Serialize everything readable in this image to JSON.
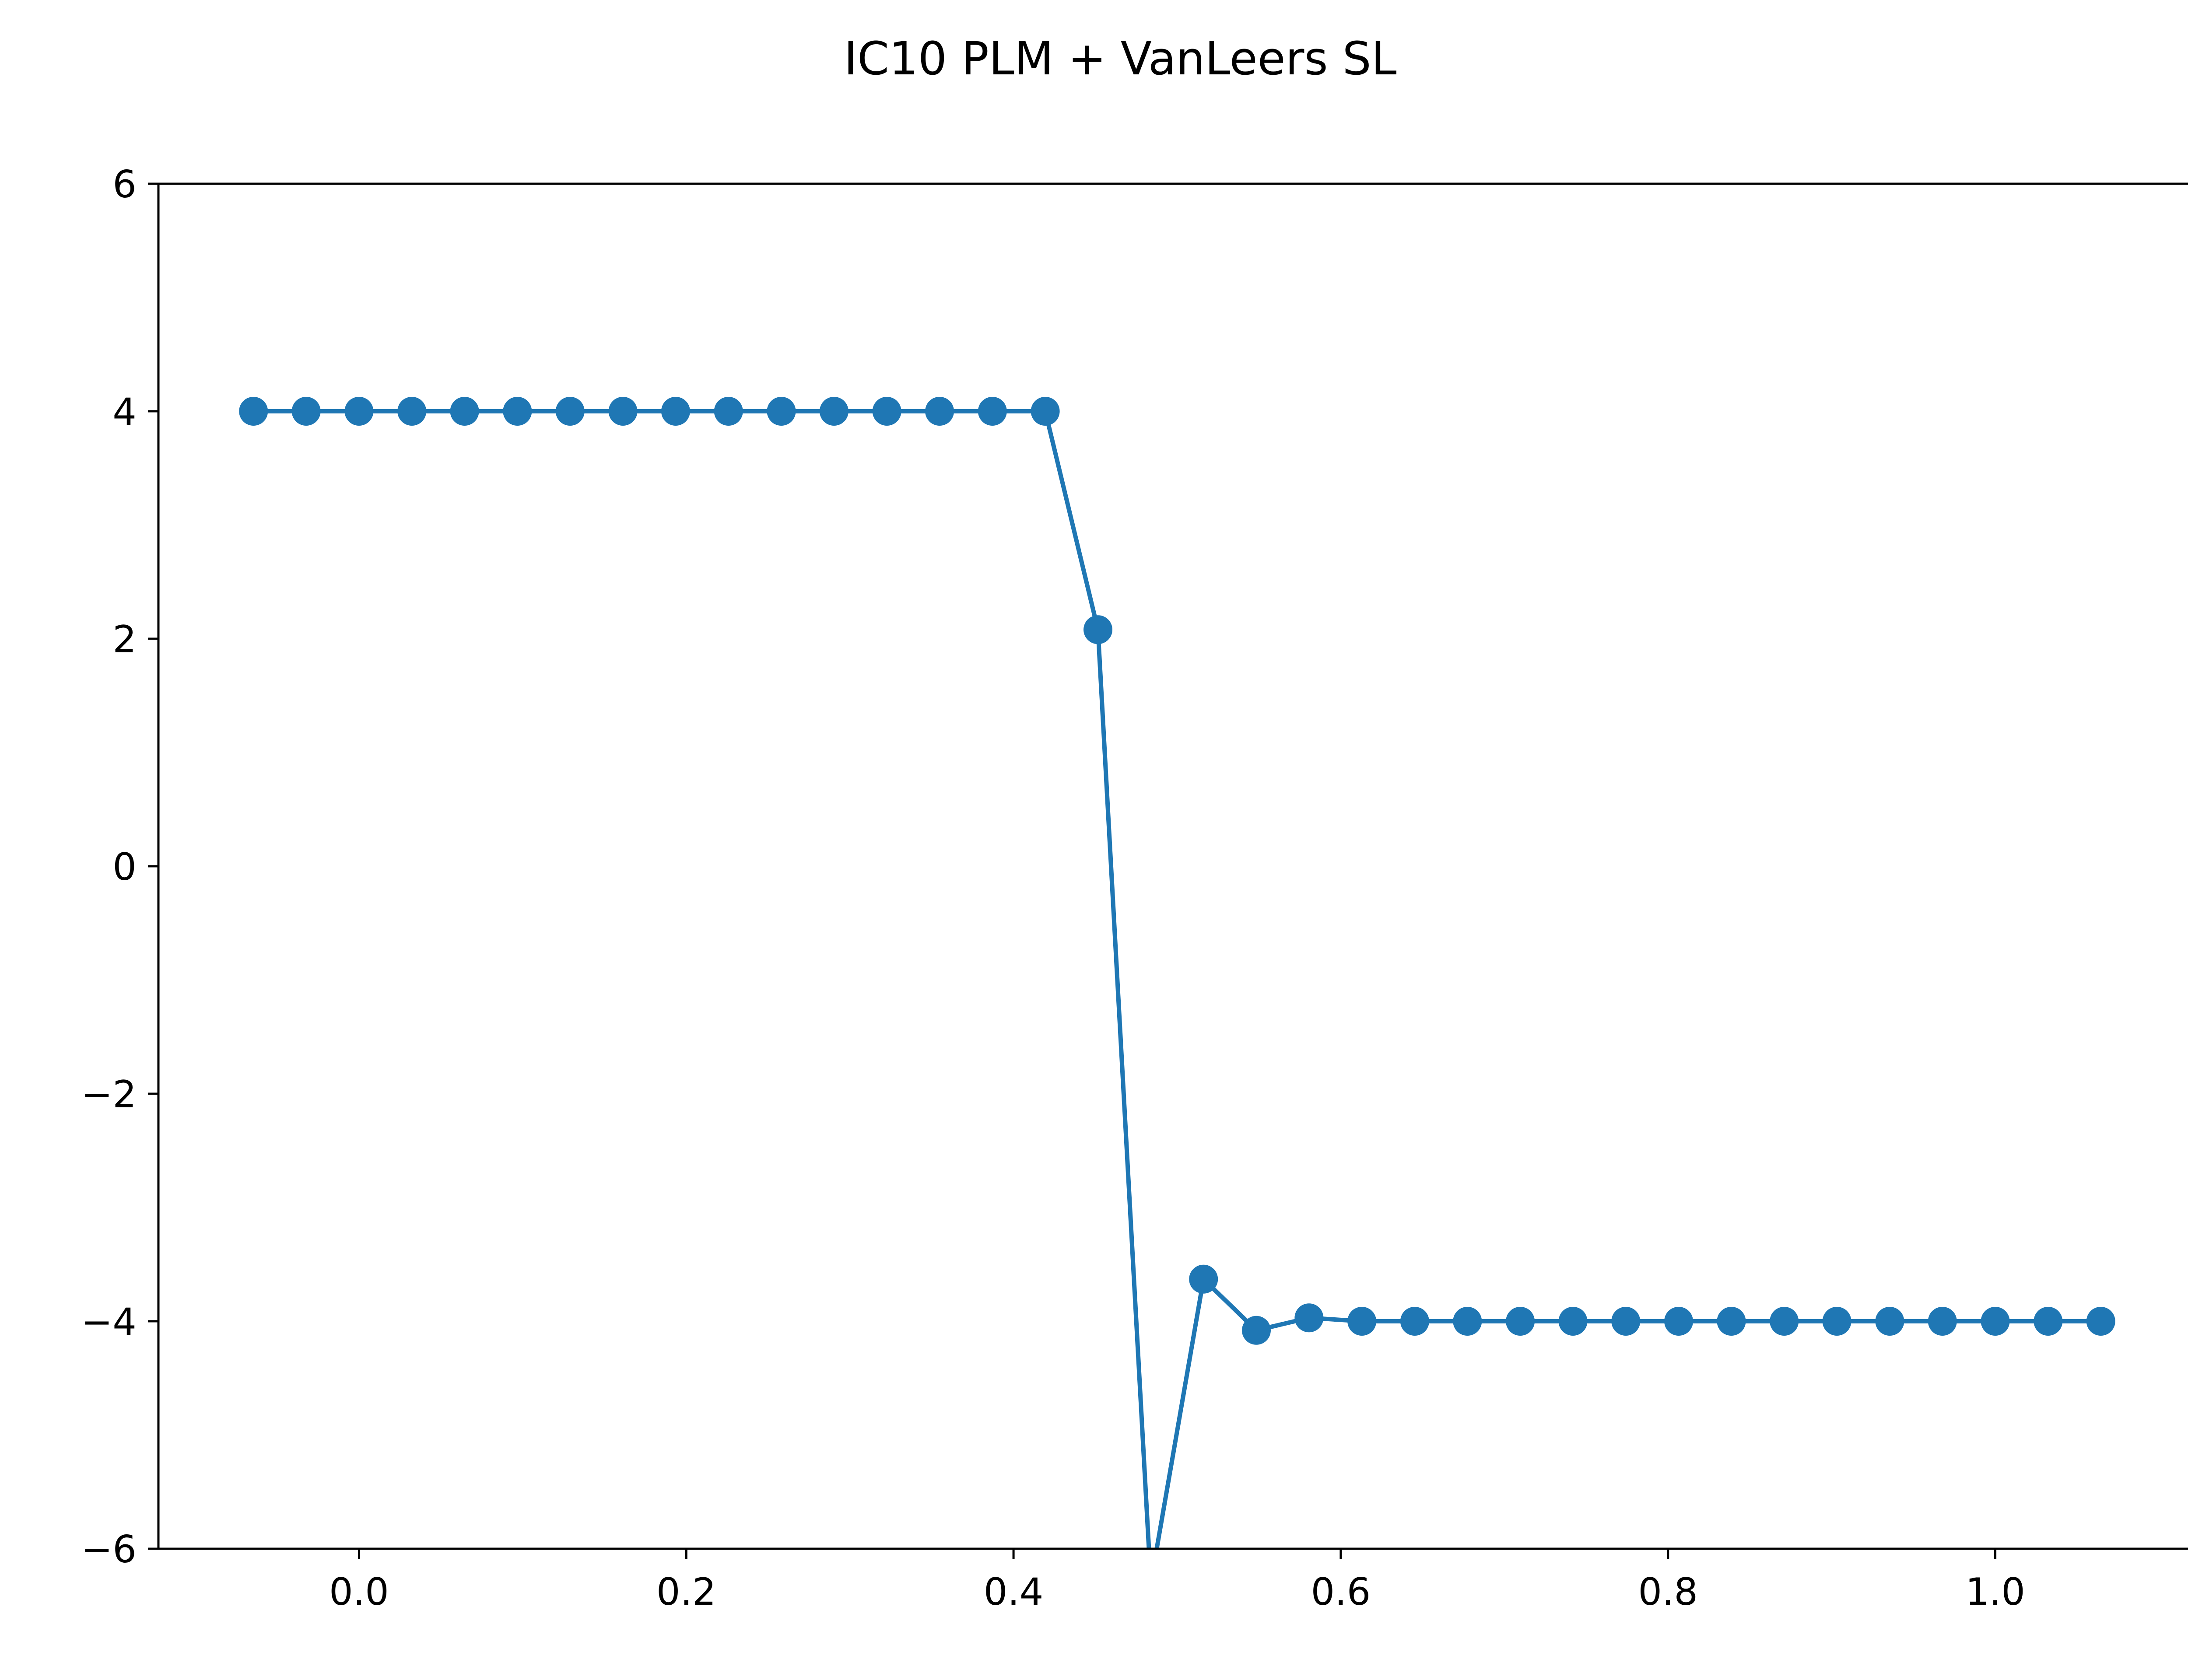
{
  "chart_data": {
    "type": "line",
    "title": "IC10 PLM + VanLeers SL",
    "xlabel": "",
    "ylabel": "",
    "xlim": [
      -0.1226,
      1.1226
    ],
    "ylim": [
      -6,
      6
    ],
    "xticks": [
      0.0,
      0.2,
      0.4,
      0.6,
      0.8,
      1.0
    ],
    "xtick_labels": [
      "0.0",
      "0.2",
      "0.4",
      "0.6",
      "0.8",
      "1.0"
    ],
    "yticks": [
      -6,
      -4,
      -2,
      0,
      2,
      4,
      6
    ],
    "ytick_labels": [
      "−6",
      "−4",
      "−2",
      "0",
      "2",
      "4",
      "6"
    ],
    "grid": false,
    "legend": "none",
    "series": [
      {
        "color": "#1f77b4",
        "marker": "circle",
        "x": [
          -0.0645,
          -0.0323,
          0.0,
          0.0323,
          0.0645,
          0.0968,
          0.129,
          0.1613,
          0.1935,
          0.2258,
          0.2581,
          0.2903,
          0.3226,
          0.3548,
          0.3871,
          0.4194,
          0.4516,
          0.4839,
          0.5161,
          0.5484,
          0.5806,
          0.6129,
          0.6452,
          0.6774,
          0.7097,
          0.7419,
          0.7742,
          0.8065,
          0.8387,
          0.871,
          0.9032,
          0.9355,
          0.9677,
          1.0,
          1.0323,
          1.0645
        ],
        "y": [
          4.0,
          4.0,
          4.0,
          4.0,
          4.0,
          4.0,
          4.0,
          4.0,
          4.0,
          4.0,
          4.0,
          4.0,
          4.0,
          4.0,
          4.0,
          4.0,
          2.08,
          -6.3,
          -3.63,
          -4.08,
          -3.97,
          -4.0,
          -4.0,
          -4.0,
          -4.0,
          -4.0,
          -4.0,
          -4.0,
          -4.0,
          -4.0,
          -4.0,
          -4.0,
          -4.0,
          -4.0,
          -4.0,
          -4.0
        ]
      }
    ]
  }
}
